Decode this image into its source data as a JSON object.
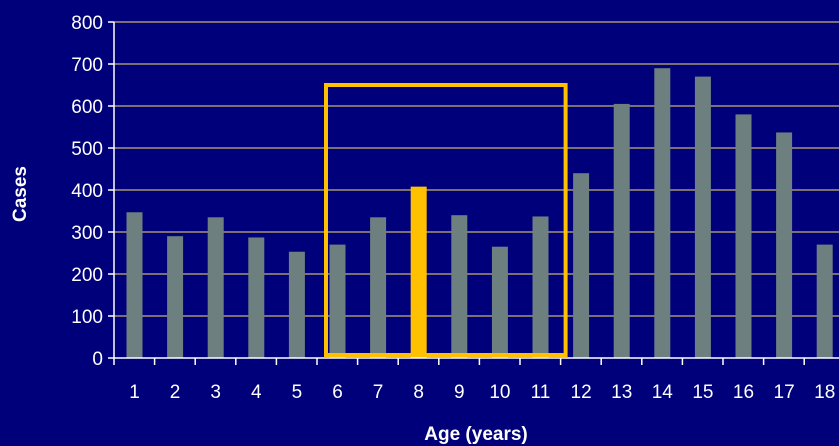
{
  "chart_data": {
    "type": "bar",
    "title": "",
    "xlabel": "Age (years)",
    "ylabel": "Cases",
    "ylim": [
      0,
      800
    ],
    "yticks": [
      0,
      100,
      200,
      300,
      400,
      500,
      600,
      700,
      800
    ],
    "categories": [
      "1",
      "2",
      "3",
      "4",
      "5",
      "6",
      "7",
      "8",
      "9",
      "10",
      "11",
      "12",
      "13",
      "14",
      "15",
      "16",
      "17",
      "18"
    ],
    "values": [
      347,
      290,
      335,
      287,
      253,
      270,
      335,
      408,
      340,
      265,
      337,
      440,
      605,
      690,
      670,
      580,
      537,
      270
    ],
    "highlight_index": 7,
    "highlight_range": {
      "from_category": "6",
      "to_category": "11",
      "top_value": 650
    },
    "grid": true,
    "legend": "none",
    "colors": {
      "background": "#00007a",
      "bar": "#6e7f80",
      "highlight": "#ffc000",
      "gridline": "#c8b46e",
      "text": "#ffffff"
    }
  }
}
